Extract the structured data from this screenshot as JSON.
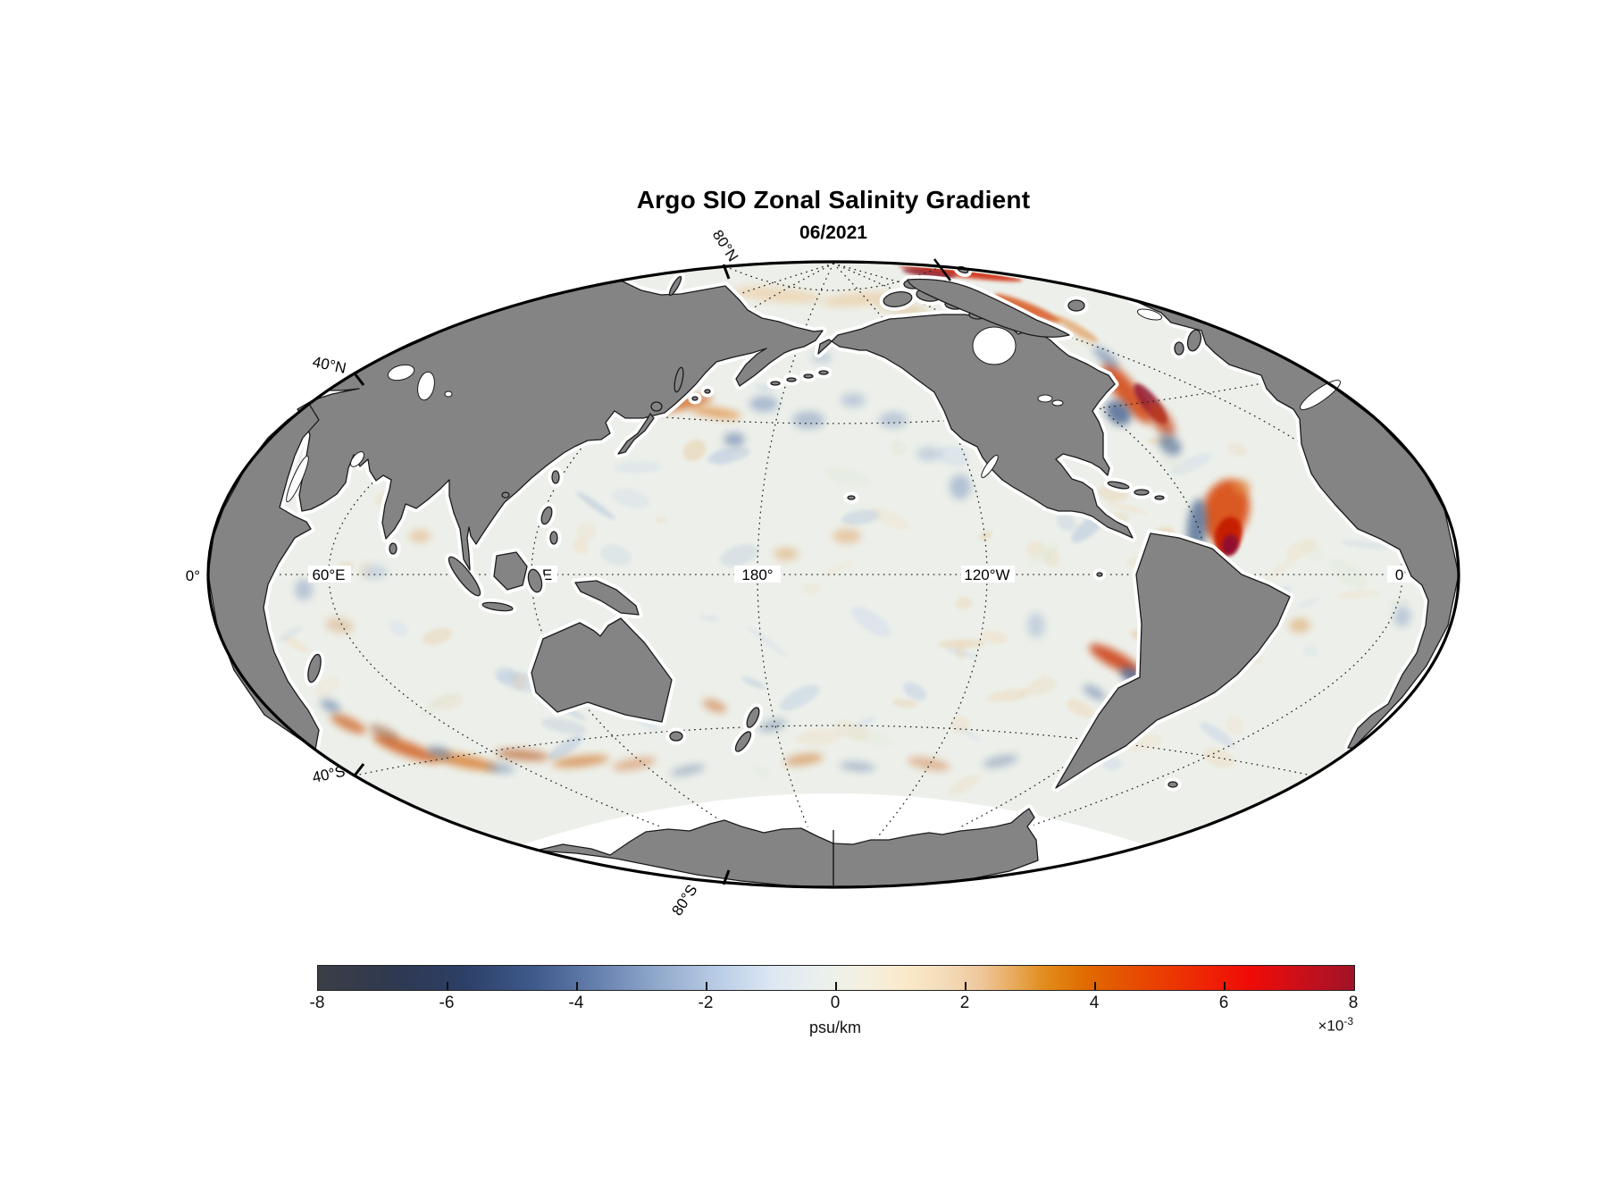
{
  "header": {
    "title": "Argo SIO Zonal Salinity Gradient",
    "subtitle": "06/2021"
  },
  "map": {
    "lat_labels": [
      {
        "text": "80°N"
      },
      {
        "text": "40°N"
      },
      {
        "text": "0°"
      },
      {
        "text": "40°S"
      },
      {
        "text": "80°S"
      }
    ],
    "lon_labels": [
      {
        "text": "60°E"
      },
      {
        "text": "120°E"
      },
      {
        "text": "180°"
      },
      {
        "text": "120°W"
      },
      {
        "text": "0°"
      }
    ],
    "land_color": "#848484",
    "ocean_color": "#edf0ea"
  },
  "colorbar": {
    "ticks": [
      "-8",
      "-6",
      "-4",
      "-2",
      "0",
      "2",
      "4",
      "6",
      "8"
    ],
    "unit": "psu/km",
    "multiplier_base": "×10",
    "multiplier_exp": "-3",
    "min": -8,
    "max": 8
  },
  "chart_data": {
    "type": "heatmap",
    "title": "Argo SIO Zonal Salinity Gradient",
    "subtitle": "06/2021",
    "projection": "Hammer ellipse centered on 160°W",
    "field": "zonal salinity gradient",
    "units": "psu/km × 10⁻³",
    "colorbar": {
      "range": [
        -8,
        8
      ],
      "ticks": [
        -8,
        -6,
        -4,
        -2,
        0,
        2,
        4,
        6,
        8
      ],
      "label": "psu/km",
      "scale": "×10⁻³",
      "palette_ends": [
        "#3b3e45",
        "#eef1e8",
        "#9f1226"
      ]
    },
    "graticule": {
      "parallels": [
        "80°N",
        "40°N",
        "0°",
        "40°S",
        "80°S"
      ],
      "meridians": [
        "60°E",
        "120°E",
        "180°",
        "120°W",
        "0°"
      ],
      "style": "dotted"
    },
    "feature_columns": [
      "x_px",
      "y_px",
      "rx_px",
      "ry_px",
      "rot_deg",
      "color",
      "opacity",
      "blur",
      "label",
      "approx_value_e-3"
    ],
    "features": [
      [
        1075,
        305,
        70,
        5,
        7,
        "#cf2b08",
        0.9,
        1,
        "arctic-fram-streak",
        6
      ],
      [
        1040,
        306,
        30,
        4,
        7,
        "#8e1226",
        0.85,
        1,
        "arctic-streak-core",
        8
      ],
      [
        1150,
        345,
        40,
        6,
        22,
        "#d84f12",
        0.8,
        1,
        "baffin-bay-streak",
        5
      ],
      [
        1205,
        368,
        28,
        5,
        30,
        "#e08a40",
        0.55,
        1,
        "",
        3
      ],
      [
        1262,
        440,
        42,
        12,
        52,
        "#d2430c",
        0.85,
        2,
        "n-atlantic-current",
        5
      ],
      [
        1288,
        452,
        28,
        9,
        52,
        "#8e1026",
        0.8,
        1,
        "n-atlantic-core",
        7
      ],
      [
        1300,
        470,
        22,
        10,
        55,
        "#c23a10",
        0.7,
        2,
        "",
        5
      ],
      [
        1252,
        462,
        16,
        12,
        45,
        "#46618e",
        0.8,
        2,
        "n-atlantic-blue",
        -5
      ],
      [
        1310,
        498,
        14,
        10,
        40,
        "#5a7499",
        0.7,
        2,
        "",
        -4
      ],
      [
        1238,
        400,
        18,
        6,
        40,
        "#5f7aa6",
        0.6,
        2,
        "",
        -3
      ],
      [
        1230,
        430,
        14,
        8,
        0,
        "#7f99bd",
        0.6,
        2,
        "",
        -3
      ],
      [
        1372,
        572,
        26,
        36,
        15,
        "#d84a10",
        0.9,
        2,
        "gulf-stream-blob",
        6
      ],
      [
        1375,
        600,
        15,
        22,
        15,
        "#c41f05",
        0.95,
        1,
        "gulf-stream-core",
        7
      ],
      [
        1377,
        610,
        9,
        12,
        15,
        "#8e1030",
        0.95,
        1,
        "gulf-stream-max",
        8
      ],
      [
        1340,
        590,
        11,
        32,
        5,
        "#5a7499",
        0.85,
        2,
        "gulf-stream-blue",
        -5
      ],
      [
        1352,
        648,
        13,
        10,
        0,
        "#7a93b8",
        0.7,
        2,
        "",
        -3
      ],
      [
        1390,
        545,
        10,
        8,
        0,
        "#e08a40",
        0.6,
        2,
        "",
        3
      ],
      [
        760,
        452,
        38,
        7,
        -10,
        "#d05a10",
        0.75,
        2,
        "kuroshio-ext",
        4
      ],
      [
        802,
        462,
        28,
        5,
        8,
        "#e07e20",
        0.7,
        2,
        "",
        3
      ],
      [
        700,
        432,
        22,
        5,
        -12,
        "#cc6a20",
        0.6,
        2,
        "",
        3
      ],
      [
        640,
        418,
        20,
        4,
        -15,
        "#d3824a",
        0.5,
        2,
        "",
        2
      ],
      [
        855,
        452,
        16,
        9,
        0,
        "#7f99bd",
        0.6,
        2,
        "",
        -3
      ],
      [
        905,
        470,
        18,
        10,
        0,
        "#8ba3c4",
        0.6,
        2,
        "",
        -2
      ],
      [
        955,
        448,
        14,
        8,
        0,
        "#98aecb",
        0.55,
        2,
        "",
        -2
      ],
      [
        1000,
        470,
        16,
        9,
        0,
        "#8ba3c4",
        0.5,
        2,
        "",
        -2
      ],
      [
        822,
        492,
        12,
        8,
        0,
        "#6d88b0",
        0.65,
        2,
        "",
        -3
      ],
      [
        1040,
        508,
        14,
        8,
        0,
        "#9db2d0",
        0.5,
        2,
        "",
        -2
      ],
      [
        1075,
        545,
        12,
        14,
        0,
        "#8ba3c4",
        0.6,
        2,
        "california-blue",
        -2
      ],
      [
        948,
        600,
        16,
        8,
        0,
        "#e0a060",
        0.5,
        2,
        "",
        2
      ],
      [
        880,
        620,
        14,
        7,
        0,
        "#d89a50",
        0.45,
        2,
        "",
        2
      ],
      [
        920,
        400,
        12,
        6,
        0,
        "#9db2d0",
        0.5,
        2,
        "",
        -2
      ],
      [
        455,
        838,
        40,
        8,
        20,
        "#cf5a12",
        0.8,
        2,
        "agulhas-return",
        4
      ],
      [
        520,
        852,
        38,
        7,
        12,
        "#d4690f",
        0.7,
        2,
        "s-indian-eddies",
        3
      ],
      [
        585,
        845,
        30,
        6,
        5,
        "#b85a20",
        0.65,
        2,
        "",
        3
      ],
      [
        650,
        852,
        32,
        6,
        -6,
        "#cc6a18",
        0.6,
        2,
        "",
        3
      ],
      [
        492,
        842,
        14,
        6,
        15,
        "#5f7aa6",
        0.6,
        2,
        "",
        -3
      ],
      [
        560,
        860,
        16,
        5,
        5,
        "#6d88b0",
        0.55,
        2,
        "",
        -2
      ],
      [
        710,
        855,
        25,
        6,
        -10,
        "#d3824a",
        0.55,
        2,
        "",
        2
      ],
      [
        770,
        862,
        20,
        5,
        -12,
        "#7189ae",
        0.5,
        2,
        "",
        -2
      ],
      [
        430,
        820,
        18,
        6,
        25,
        "#8e4a20",
        0.5,
        2,
        "",
        3
      ],
      [
        390,
        810,
        22,
        7,
        25,
        "#cc5a18",
        0.7,
        2,
        "agulhas",
        4
      ],
      [
        370,
        790,
        12,
        6,
        25,
        "#5f7aa6",
        0.6,
        2,
        "",
        -3
      ],
      [
        1248,
        738,
        32,
        9,
        28,
        "#cc3a08",
        0.85,
        2,
        "brazil-malvinas",
        5
      ],
      [
        1270,
        758,
        18,
        8,
        30,
        "#4a6590",
        0.8,
        2,
        "",
        -4
      ],
      [
        1300,
        742,
        16,
        6,
        20,
        "#d3682a",
        0.6,
        2,
        "",
        3
      ],
      [
        1225,
        775,
        14,
        6,
        30,
        "#6d88b0",
        0.6,
        2,
        "",
        -3
      ],
      [
        1160,
        700,
        10,
        14,
        0,
        "#9db2d0",
        0.5,
        2,
        "peru-coast",
        -2
      ],
      [
        1612,
        628,
        10,
        16,
        0,
        "#48648f",
        0.8,
        2,
        "eq-atlantic-blue",
        -5
      ],
      [
        1600,
        592,
        8,
        10,
        0,
        "#cc4410",
        0.7,
        2,
        "",
        4
      ],
      [
        1570,
        690,
        9,
        12,
        10,
        "#8ba3c4",
        0.5,
        2,
        "",
        -2
      ],
      [
        1455,
        700,
        12,
        8,
        0,
        "#d89a50",
        0.5,
        2,
        "",
        2
      ],
      [
        800,
        790,
        14,
        6,
        20,
        "#c86a28",
        0.55,
        2,
        "tasman",
        3
      ],
      [
        865,
        812,
        16,
        6,
        -15,
        "#7189ae",
        0.5,
        2,
        "",
        -2
      ],
      [
        900,
        850,
        22,
        6,
        -8,
        "#cc6a18",
        0.5,
        2,
        "",
        2
      ],
      [
        960,
        858,
        20,
        5,
        5,
        "#6d88b0",
        0.5,
        2,
        "",
        -2
      ],
      [
        1040,
        855,
        24,
        6,
        10,
        "#d3824a",
        0.55,
        2,
        "",
        2
      ],
      [
        1120,
        852,
        20,
        6,
        -12,
        "#7189ae",
        0.5,
        2,
        "",
        -2
      ],
      [
        420,
        640,
        14,
        8,
        0,
        "#a9bdd8",
        0.5,
        2,
        "",
        -1
      ],
      [
        470,
        600,
        12,
        7,
        0,
        "#e0a060",
        0.45,
        2,
        "",
        1
      ],
      [
        380,
        700,
        16,
        8,
        10,
        "#d8a878",
        0.5,
        2,
        "",
        1
      ],
      [
        340,
        660,
        10,
        12,
        0,
        "#8ba3c4",
        0.55,
        2,
        "somali-coast",
        -2
      ],
      [
        870,
        330,
        50,
        8,
        5,
        "#ecc28c",
        0.5,
        2,
        "arctic-pale",
        1
      ],
      [
        960,
        335,
        40,
        7,
        -5,
        "#e8b878",
        0.45,
        2,
        "",
        1
      ],
      [
        1010,
        345,
        30,
        6,
        10,
        "#d9a868",
        0.4,
        2,
        "",
        1
      ]
    ],
    "texture": {
      "seed": 7,
      "count": 175,
      "palette": [
        "#f0dcc0",
        "#ecd2ae",
        "#e6c79c",
        "#ccd9ec",
        "#b9cbe3",
        "#a9bdd8",
        "#dfe8d8"
      ],
      "opacity_range": [
        0.22,
        0.52
      ]
    }
  }
}
